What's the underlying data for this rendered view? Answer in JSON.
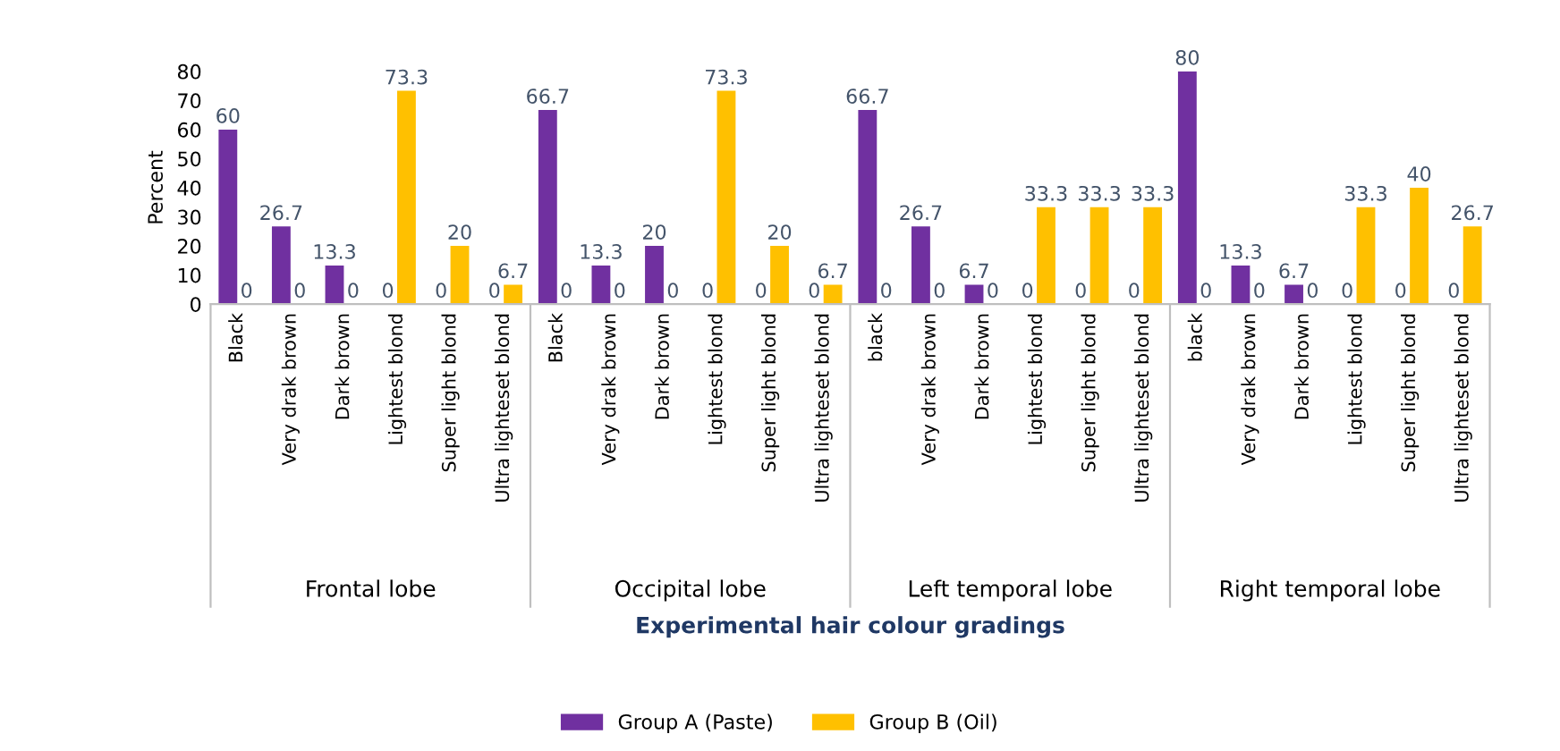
{
  "chart_data": {
    "type": "bar",
    "ylabel": "Percent",
    "categories": [
      "Black",
      "Very drak brown",
      "Dark brown",
      "Lightest blond",
      "Super light blond",
      "Ultra lighteset blond",
      "Black",
      "Very drak brown",
      "Dark brown",
      "Lightest blond",
      "Super light blond",
      "Ultra lighteset blond",
      "black",
      "Very drak brown",
      "Dark brown",
      "Lightest blond",
      "Super light blond",
      "Ultra lighteset blond",
      "black",
      "Very drak brown",
      "Dark brown",
      "Lightest blond",
      "Super light blond",
      "Ultra lighteset blond"
    ],
    "series": [
      {
        "name": "Group A (Paste)",
        "color": "#7030a0",
        "values": [
          60,
          26.7,
          13.3,
          0,
          0,
          0,
          66.7,
          13.3,
          20,
          0,
          0,
          0,
          66.7,
          26.7,
          6.7,
          0,
          0,
          0,
          80,
          13.3,
          6.7,
          0,
          0,
          0
        ]
      },
      {
        "name": "Group B (Oil)",
        "color": "#ffc000",
        "values": [
          0,
          0,
          0,
          73.3,
          20,
          6.7,
          0,
          0,
          0,
          73.3,
          20,
          6.7,
          0,
          0,
          0,
          33.3,
          33.3,
          33.3,
          0,
          0,
          0,
          33.3,
          40,
          26.7
        ]
      }
    ],
    "ylim": [
      0,
      80
    ],
    "yticks": [
      0,
      10,
      20,
      30,
      40,
      50,
      60,
      70,
      80
    ],
    "annotations": [
      "Experimental hair colour gradings",
      "Frontal lobe",
      "Occipital lobe",
      "Left temporal lobe",
      "Right temporal lobe"
    ],
    "data_labels": true,
    "grid": false,
    "legend": "bottom"
  }
}
